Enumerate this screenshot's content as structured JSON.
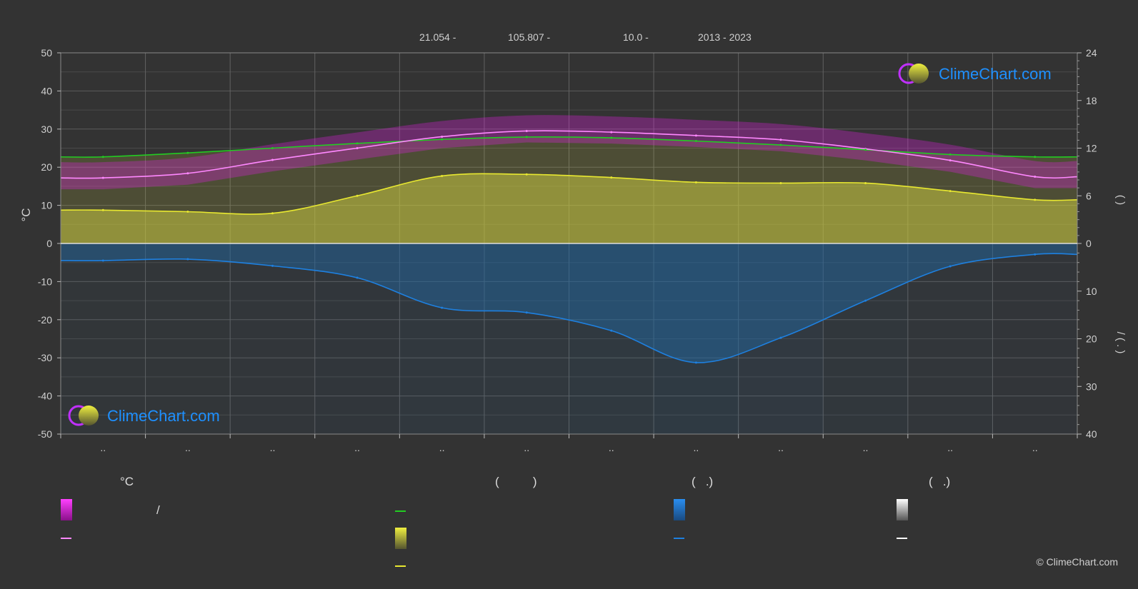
{
  "header": {
    "lat": "21.054 -",
    "lon": "105.807 -",
    "elev": "10.0 -",
    "years": "2013 - 2023"
  },
  "logo": {
    "text": "ClimeChart.com"
  },
  "copyright": "© ClimeChart.com",
  "legend": {
    "col1": {
      "heading": "°C",
      "range_label": "/"
    },
    "col2": {
      "heading": "(          )"
    },
    "col3": {
      "heading": "(   .)"
    },
    "col4": {
      "heading": "(   .)"
    }
  },
  "colors": {
    "background": "#333333",
    "temp_range": "#e020e0",
    "mean_max": "#ff88ff",
    "daylight": "#22cc22",
    "sunshine": "#e8e830",
    "sunshine_fill": "#c8c840",
    "precip": "#1e80e0",
    "precip_fill": "#1e6aa8",
    "snow": "#ffffff"
  },
  "chart_data": {
    "type": "line",
    "x_ticks": [
      "..",
      "..",
      "..",
      "..",
      "..",
      "..",
      "..",
      "..",
      "..",
      "..",
      "..",
      ".."
    ],
    "left_axis": {
      "label": "°C",
      "range": [
        -50,
        50
      ],
      "ticks": [
        50,
        40,
        30,
        20,
        10,
        0,
        -10,
        -20,
        -30,
        -40,
        -50
      ]
    },
    "right_axis_top": {
      "range": [
        0,
        24
      ],
      "ticks": [
        24,
        18,
        12,
        6,
        0
      ],
      "label": "(     )"
    },
    "right_axis_bottom": {
      "range": [
        0,
        40
      ],
      "ticks": [
        0,
        10,
        20,
        30,
        40
      ],
      "label": "/   (  .  )"
    },
    "grid": true,
    "series": [
      {
        "key": "mean_max",
        "axis": "temp_c",
        "values": [
          17.2,
          18.4,
          21.9,
          25.0,
          28.0,
          29.5,
          29.2,
          28.3,
          27.2,
          24.8,
          21.8,
          17.5
        ]
      },
      {
        "key": "daylight",
        "axis": "hours",
        "values": [
          10.9,
          11.4,
          12.0,
          12.6,
          13.1,
          13.4,
          13.3,
          12.9,
          12.4,
          11.8,
          11.2,
          10.9
        ]
      },
      {
        "key": "sunshine",
        "axis": "hours",
        "values": [
          4.2,
          4.0,
          3.8,
          6.0,
          8.5,
          8.7,
          8.3,
          7.7,
          7.6,
          7.6,
          6.6,
          5.5
        ]
      },
      {
        "key": "precip",
        "axis": "mm",
        "values": [
          3.6,
          3.3,
          4.7,
          7.2,
          13.5,
          14.5,
          18.3,
          25.0,
          19.8,
          12.0,
          4.8,
          2.3
        ]
      }
    ]
  }
}
